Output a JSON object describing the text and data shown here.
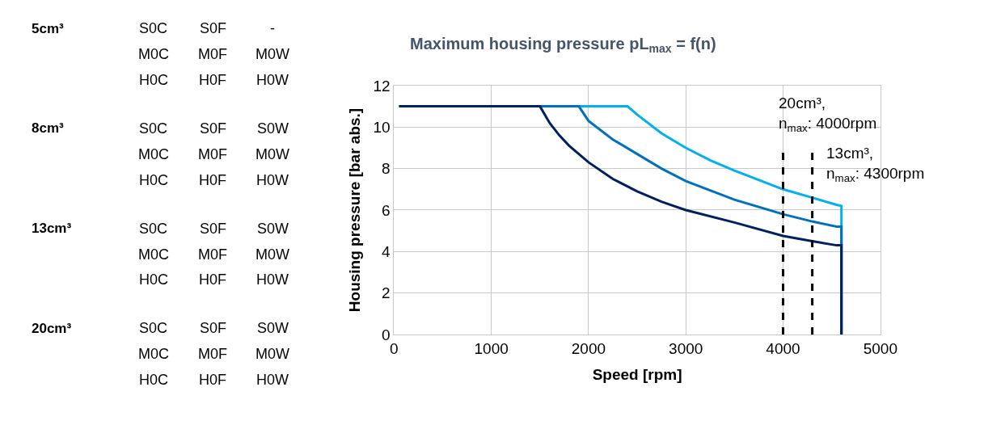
{
  "chart_data": [
    {
      "type": "other",
      "annotations": [
        "5cm³",
        "S0C",
        "S0F",
        "-",
        "M0C",
        "M0F",
        "M0W",
        "H0C",
        "H0F",
        "H0W",
        "8cm³",
        "S0C",
        "S0F",
        "S0W",
        "M0C",
        "M0F",
        "M0W",
        "H0C",
        "H0F",
        "H0W",
        "13cm³",
        "S0C",
        "S0F",
        "S0W",
        "M0C",
        "M0F",
        "M0W",
        "H0C",
        "H0F",
        "H0W",
        "20cm³",
        "S0C",
        "S0F",
        "S0W",
        "M0C",
        "M0F",
        "M0W",
        "H0C",
        "H0F",
        "H0W"
      ]
    },
    {
      "type": "line",
      "title": "Maximum housing pressure pL$_{max}$ = f(n)",
      "xlabel": "Speed [rpm]",
      "ylabel": "Housing pressure [bar abs.]",
      "xlim": [
        0,
        5000
      ],
      "xticks": [
        0,
        1000,
        2000,
        3000,
        4000,
        5000
      ],
      "ylim": [
        0,
        12
      ],
      "yticks": [
        0,
        2,
        4,
        6,
        8,
        10,
        12
      ],
      "grid": true,
      "marker": "none",
      "line_style": "solid",
      "series": [
        {
          "color": "#00b0f0",
          "x": [
            1900,
            2400,
            2500,
            2750,
            3000,
            3250,
            3500,
            4000,
            4300,
            4550,
            4600,
            4600
          ],
          "values": [
            11,
            11,
            10.6,
            9.7,
            9.0,
            8.4,
            7.9,
            7.0,
            6.6,
            6.25,
            6.2,
            0
          ]
        },
        {
          "color": "#0070c0",
          "x": [
            1500,
            1900,
            2000,
            2250,
            2500,
            2750,
            3000,
            3500,
            4000,
            4300,
            4550,
            4600,
            4600
          ],
          "values": [
            11,
            11,
            10.3,
            9.4,
            8.7,
            8.0,
            7.4,
            6.5,
            5.8,
            5.45,
            5.2,
            5.2,
            0
          ]
        },
        {
          "color": "#002060",
          "x": [
            50,
            1500,
            1600,
            1700,
            1800,
            2000,
            2250,
            2500,
            2750,
            3000,
            3500,
            4000,
            4300,
            4550,
            4600,
            4600
          ],
          "values": [
            11,
            11,
            10.2,
            9.6,
            9.1,
            8.3,
            7.5,
            6.9,
            6.4,
            6.0,
            5.4,
            4.75,
            4.5,
            4.3,
            4.3,
            0
          ]
        }
      ],
      "ref_lines": [
        {
          "axis": "x",
          "value": 4000,
          "label": "20cm³,\nn$_{max}$: 4000rpm",
          "color": "#000000",
          "line_style": "dashed"
        },
        {
          "axis": "x",
          "value": 4300,
          "label": "13cm³,\nn$_{max}$: 4300rpm",
          "color": "#000000",
          "line_style": "dashed"
        }
      ]
    }
  ]
}
